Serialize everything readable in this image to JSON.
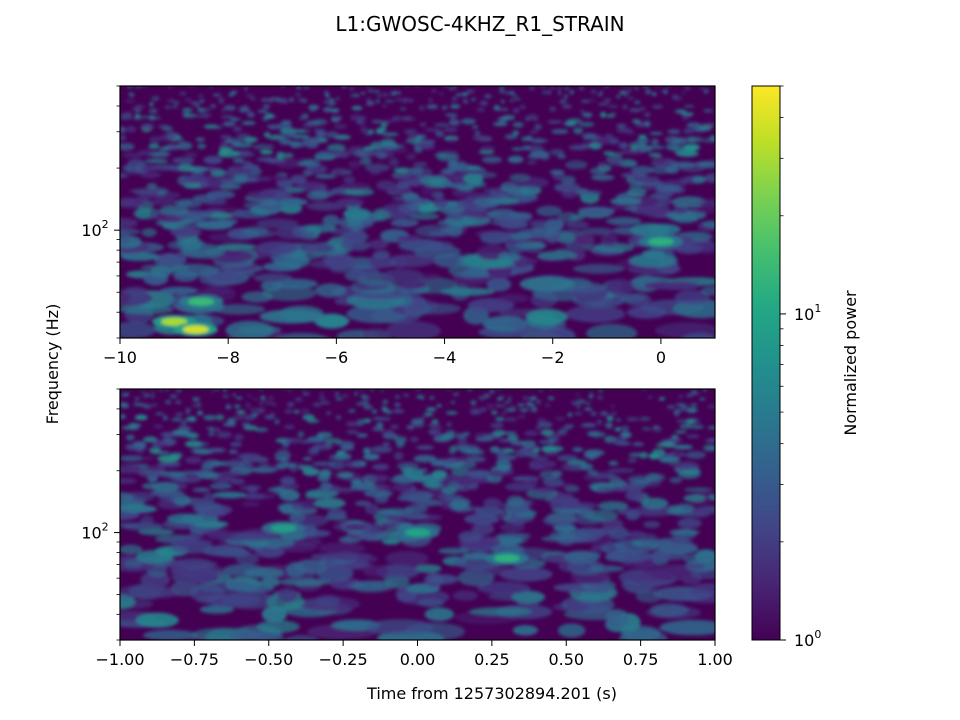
{
  "chart_data": [
    {
      "type": "heatmap",
      "panel": "top",
      "title": "L1:GWOSC-4KHZ_R1_STRAIN",
      "xlim": [
        -10,
        1
      ],
      "x_ticks": [
        -10,
        -8,
        -6,
        -4,
        -2,
        0
      ],
      "x_tick_labels": [
        "−10",
        "−8",
        "−6",
        "−4",
        "−2",
        "0"
      ],
      "ylim": [
        30,
        500
      ],
      "yscale": "log",
      "y_ticks": [
        100
      ],
      "y_tick_labels": [
        "10",
        "2"
      ],
      "ylabel": "Frequency (Hz)",
      "colormap": "viridis",
      "hotspots": [
        {
          "t": -9.0,
          "f": 36,
          "power": 30
        },
        {
          "t": -8.6,
          "f": 33,
          "power": 38
        },
        {
          "t": -8.5,
          "f": 45,
          "power": 14
        },
        {
          "t": 0.0,
          "f": 88,
          "power": 12
        }
      ]
    },
    {
      "type": "heatmap",
      "panel": "bottom",
      "xlim": [
        -1.0,
        1.0
      ],
      "x_ticks": [
        -1.0,
        -0.75,
        -0.5,
        -0.25,
        0.0,
        0.25,
        0.5,
        0.75,
        1.0
      ],
      "x_tick_labels": [
        "−1.00",
        "−0.75",
        "−0.50",
        "−0.25",
        "0.00",
        "0.25",
        "0.50",
        "0.75",
        "1.00"
      ],
      "xlabel": "Time from 1257302894.201 (s)",
      "ylim": [
        30,
        500
      ],
      "yscale": "log",
      "y_ticks": [
        100
      ],
      "y_tick_labels": [
        "10",
        "2"
      ],
      "colormap": "viridis",
      "hotspots": [
        {
          "t": 0.3,
          "f": 75,
          "power": 12
        },
        {
          "t": 0.0,
          "f": 100,
          "power": 10
        },
        {
          "t": -0.45,
          "f": 105,
          "power": 9
        }
      ]
    },
    {
      "type": "colorbar",
      "label": "Normalized power",
      "scale": "log",
      "range": [
        1,
        50
      ],
      "colormap": "viridis",
      "tick_values": [
        1,
        10
      ],
      "tick_labels": [
        [
          "10",
          "0"
        ],
        [
          "10",
          "1"
        ]
      ]
    }
  ]
}
